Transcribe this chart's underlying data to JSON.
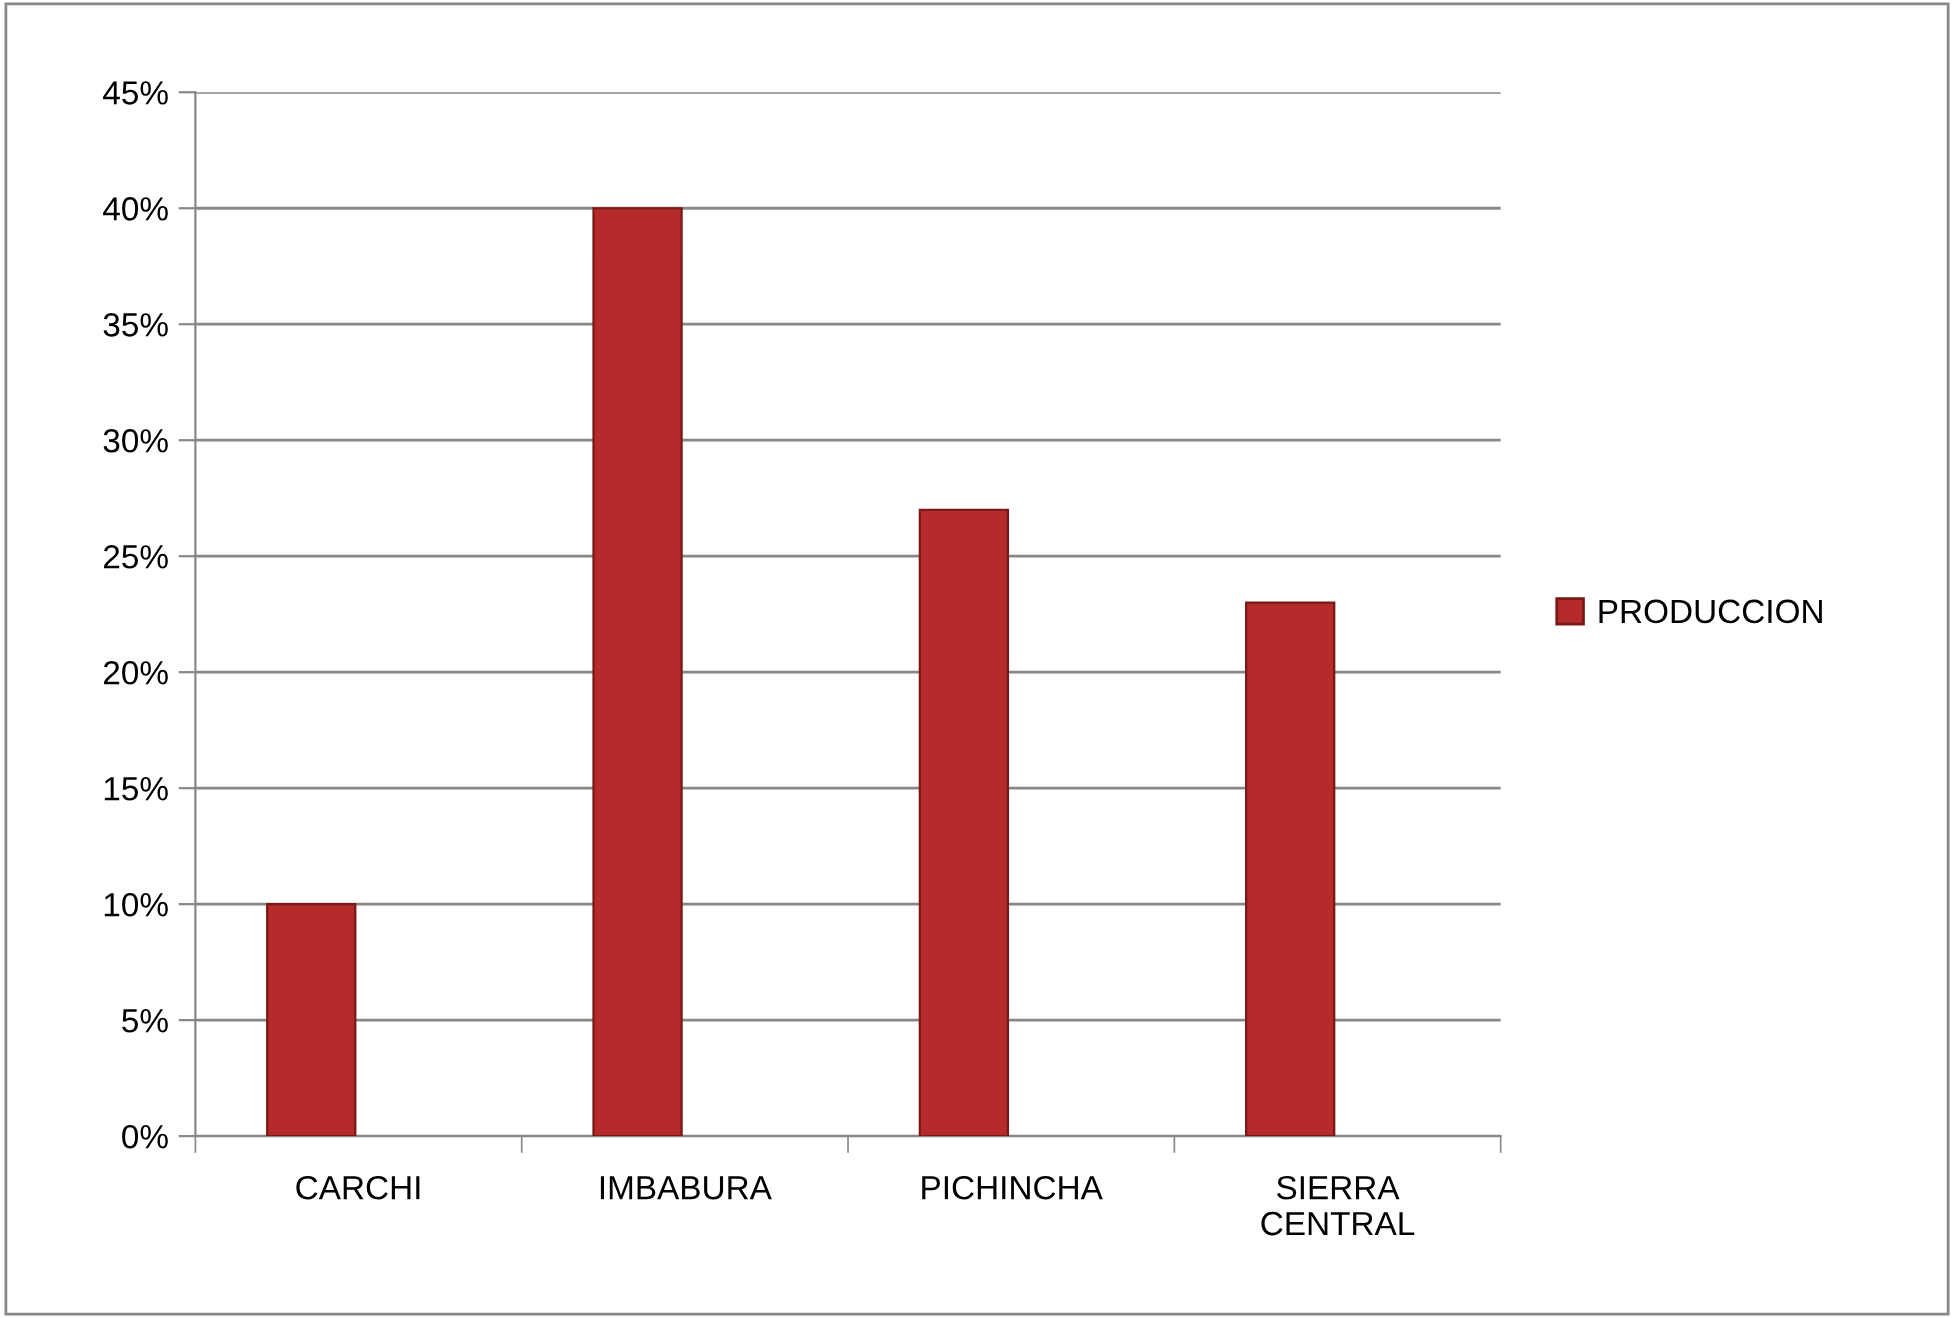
{
  "chart_data": {
    "type": "bar",
    "categories": [
      "CARCHI",
      "IMBABURA",
      "PICHINCHA",
      "SIERRA\nCENTRAL"
    ],
    "series": [
      {
        "name": "PRODUCCION",
        "color": "#b52a2a",
        "values": [
          10,
          40,
          27,
          23
        ]
      }
    ],
    "ylim": [
      0,
      45
    ],
    "yticks": [
      {
        "value": 0,
        "label": "0%"
      },
      {
        "value": 5,
        "label": "5%"
      },
      {
        "value": 10,
        "label": "10%"
      },
      {
        "value": 15,
        "label": "15%"
      },
      {
        "value": 20,
        "label": "20%"
      },
      {
        "value": 25,
        "label": "25%"
      },
      {
        "value": 30,
        "label": "30%"
      },
      {
        "value": 35,
        "label": "35%"
      },
      {
        "value": 40,
        "label": "40%"
      },
      {
        "value": 45,
        "label": "45%"
      }
    ],
    "grid": "y",
    "legend": "right"
  }
}
